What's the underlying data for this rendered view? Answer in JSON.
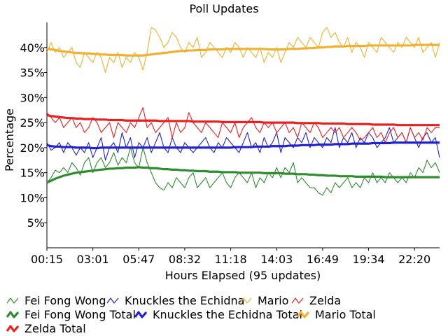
{
  "chart_data": {
    "type": "line",
    "title": "Poll Updates",
    "xlabel": "Hours Elapsed (95 updates)",
    "ylabel": "Percentage",
    "ylim": [
      0,
      45
    ],
    "yticks": [
      5,
      10,
      15,
      20,
      25,
      30,
      35,
      40
    ],
    "ytick_labels": [
      "5%",
      "10%",
      "15%",
      "20%",
      "25%",
      "30%",
      "35%",
      "40%"
    ],
    "x_tick_labels": [
      "00:15",
      "03:01",
      "05:47",
      "08:32",
      "11:18",
      "14:03",
      "16:49",
      "19:34",
      "22:20"
    ],
    "x_tick_index": [
      0,
      11,
      22,
      33,
      44,
      55,
      66,
      77,
      88
    ],
    "n_updates": 95,
    "grid": false,
    "legend_position": "bottom",
    "series": [
      {
        "name": "Fei Fong Wong",
        "color": "#2e8b2e",
        "style": "thin",
        "values": [
          13,
          14,
          15.5,
          15,
          16,
          15,
          17,
          16,
          14.5,
          17,
          18,
          15,
          17,
          18,
          16,
          17,
          19,
          16.5,
          18,
          17,
          20,
          17,
          16,
          20,
          17,
          15,
          13,
          12,
          11.5,
          13,
          12,
          14,
          13,
          12,
          14,
          15,
          12,
          13,
          14,
          12,
          13,
          14,
          15,
          13,
          12,
          14,
          15,
          14,
          13,
          15,
          12,
          14,
          13,
          15,
          14,
          16,
          14,
          16,
          15,
          17,
          13,
          14,
          13,
          12,
          12,
          11,
          10.5,
          12,
          11,
          13,
          12,
          13,
          14,
          12,
          13,
          12,
          14,
          13,
          15,
          13,
          14,
          13,
          15,
          14,
          13,
          14,
          13,
          15,
          14,
          16,
          15,
          17.5,
          16,
          17,
          15
        ]
      },
      {
        "name": "Knuckles the Echidna",
        "color": "#2222cc",
        "style": "thin",
        "values": [
          21,
          19.5,
          20,
          21,
          19,
          21,
          20,
          18.5,
          20,
          19,
          21,
          18,
          20,
          22,
          17.5,
          20,
          21,
          19,
          23,
          20,
          22,
          18,
          21,
          20,
          22,
          19,
          21,
          23,
          20,
          19,
          22,
          20,
          19,
          21,
          20,
          19,
          20,
          21,
          22,
          20,
          19,
          21,
          20,
          22,
          21,
          20,
          19,
          21,
          23,
          20,
          21,
          19,
          22,
          20,
          21,
          23,
          19,
          22,
          21,
          20,
          22,
          21,
          23,
          20,
          22,
          21,
          20,
          22,
          21,
          24,
          20,
          22,
          21,
          23,
          20,
          22,
          21,
          23,
          22,
          20,
          21,
          22,
          24,
          21,
          22,
          23,
          21,
          24,
          22,
          20,
          22,
          23,
          21,
          22,
          18
        ]
      },
      {
        "name": "Mario",
        "color": "#f0b030",
        "style": "thin",
        "values": [
          39,
          41,
          39,
          40,
          38,
          39,
          40,
          37,
          36,
          39,
          38,
          37,
          39,
          38,
          35,
          38,
          37,
          39,
          36,
          38,
          37,
          39,
          38,
          35.5,
          39,
          44,
          43.5,
          42,
          40,
          41,
          43,
          42,
          40,
          39,
          41,
          40,
          42,
          38,
          39,
          41,
          40,
          39,
          38,
          40,
          39,
          41,
          40,
          38,
          40,
          39,
          38,
          40,
          37,
          39,
          38,
          40,
          37,
          39,
          41,
          40,
          42,
          41,
          40,
          42,
          41,
          40,
          43,
          44,
          42,
          43,
          41,
          40,
          42,
          39,
          41,
          40,
          38,
          41,
          40,
          39,
          42,
          41,
          40,
          39,
          41,
          40,
          42,
          41,
          40,
          42,
          39,
          40,
          41,
          38,
          41
        ]
      },
      {
        "name": "Zelda",
        "color": "#e82020",
        "style": "thin",
        "values": [
          27,
          26,
          25,
          26,
          24,
          25,
          26,
          24,
          25,
          23,
          24,
          26,
          25,
          23,
          24,
          25,
          22,
          25,
          24,
          23,
          25,
          24,
          26,
          28,
          24,
          25,
          23,
          24,
          25,
          26,
          22,
          25,
          23,
          24,
          27,
          25,
          24,
          23,
          25,
          24,
          23,
          22,
          25,
          24,
          23,
          25,
          22,
          24,
          25,
          26,
          24,
          23,
          25,
          24,
          25,
          23,
          24,
          25,
          23,
          24,
          22,
          25,
          24,
          23,
          25,
          24,
          22,
          23,
          24,
          23,
          24,
          22,
          23,
          24,
          23,
          21.5,
          22,
          23,
          24,
          22,
          23,
          21,
          23,
          24,
          22,
          23,
          21,
          24,
          22,
          23,
          21.5,
          24,
          23,
          24,
          24
        ]
      },
      {
        "name": "Fei Fong Wong Total",
        "color": "#2e8b2e",
        "style": "thick",
        "values": [
          13,
          13.4,
          13.8,
          14.1,
          14.4,
          14.6,
          14.8,
          15,
          15.1,
          15.2,
          15.3,
          15.4,
          15.5,
          15.6,
          15.7,
          15.8,
          15.8,
          15.9,
          15.9,
          16,
          16,
          16,
          16.1,
          16,
          16,
          15.9,
          15.9,
          15.8,
          15.7,
          15.7,
          15.6,
          15.6,
          15.5,
          15.5,
          15.4,
          15.4,
          15.3,
          15.3,
          15.3,
          15.2,
          15.2,
          15.2,
          15.1,
          15.1,
          15.1,
          15.1,
          15,
          15,
          15,
          15,
          15,
          15,
          14.9,
          14.9,
          14.9,
          14.9,
          14.9,
          14.8,
          14.8,
          14.8,
          14.7,
          14.7,
          14.7,
          14.6,
          14.6,
          14.5,
          14.5,
          14.4,
          14.4,
          14.4,
          14.3,
          14.3,
          14.3,
          14.3,
          14.2,
          14.2,
          14.2,
          14.2,
          14.2,
          14.2,
          14.2,
          14.1,
          14.1,
          14.1,
          14.1,
          14.1,
          14.1,
          14.1,
          14.1,
          14.1,
          14.1,
          14.1,
          14.1,
          14.1,
          14.1
        ]
      },
      {
        "name": "Knuckles the Echidna Total",
        "color": "#2222cc",
        "style": "thick",
        "values": [
          20.5,
          20.3,
          20.2,
          20.2,
          20.1,
          20.1,
          20.1,
          20,
          20,
          20,
          20,
          19.9,
          19.9,
          20,
          20,
          20,
          20,
          20,
          20,
          20,
          20,
          20,
          20,
          20,
          20,
          20,
          20,
          20,
          20,
          20,
          20,
          20,
          20,
          20,
          20,
          20,
          20,
          20,
          20,
          20,
          20,
          20,
          20,
          20,
          20,
          20.1,
          20.1,
          20.1,
          20.1,
          20.1,
          20.2,
          20.2,
          20.2,
          20.2,
          20.3,
          20.3,
          20.3,
          20.3,
          20.4,
          20.4,
          20.4,
          20.5,
          20.5,
          20.5,
          20.5,
          20.6,
          20.6,
          20.6,
          20.6,
          20.7,
          20.7,
          20.7,
          20.7,
          20.8,
          20.8,
          20.8,
          20.8,
          20.8,
          20.9,
          20.9,
          20.9,
          20.9,
          20.9,
          21,
          21,
          21,
          21,
          21,
          21,
          21,
          21,
          21,
          21,
          21,
          21
        ]
      },
      {
        "name": "Mario Total",
        "color": "#f0b030",
        "style": "thick",
        "values": [
          39.8,
          39.6,
          39.5,
          39.3,
          39.2,
          39.1,
          39,
          38.9,
          38.9,
          38.8,
          38.8,
          38.7,
          38.7,
          38.6,
          38.6,
          38.5,
          38.5,
          38.5,
          38.5,
          38.4,
          38.4,
          38.4,
          38.4,
          38.4,
          38.5,
          38.6,
          38.7,
          38.8,
          38.9,
          39,
          39.1,
          39.2,
          39.3,
          39.3,
          39.4,
          39.4,
          39.5,
          39.5,
          39.5,
          39.6,
          39.6,
          39.6,
          39.6,
          39.7,
          39.7,
          39.7,
          39.7,
          39.7,
          39.7,
          39.7,
          39.7,
          39.7,
          39.7,
          39.6,
          39.6,
          39.6,
          39.6,
          39.6,
          39.7,
          39.7,
          39.7,
          39.8,
          39.8,
          39.9,
          39.9,
          40,
          40,
          40.1,
          40.1,
          40.2,
          40.2,
          40.2,
          40.3,
          40.3,
          40.3,
          40.3,
          40.3,
          40.4,
          40.4,
          40.4,
          40.4,
          40.4,
          40.4,
          40.4,
          40.4,
          40.4,
          40.4,
          40.4,
          40.5,
          40.5,
          40.5,
          40.5,
          40.5,
          40.5,
          40.5
        ]
      },
      {
        "name": "Zelda Total",
        "color": "#e82020",
        "style": "thick",
        "values": [
          26.5,
          26.3,
          26.2,
          26.1,
          26,
          25.9,
          25.9,
          25.8,
          25.8,
          25.7,
          25.7,
          25.7,
          25.6,
          25.6,
          25.6,
          25.5,
          25.5,
          25.5,
          25.5,
          25.4,
          25.4,
          25.4,
          25.4,
          25.4,
          25.4,
          25.4,
          25.4,
          25.3,
          25.3,
          25.3,
          25.3,
          25.3,
          25.3,
          25.3,
          25.3,
          25.2,
          25.2,
          25.2,
          25.2,
          25.2,
          25.2,
          25.2,
          25.1,
          25.1,
          25.1,
          25.1,
          25.1,
          25.1,
          25.1,
          25.1,
          25.1,
          25.1,
          25,
          25,
          25,
          25,
          25,
          25,
          25,
          25,
          24.9,
          24.9,
          24.9,
          24.9,
          24.9,
          24.9,
          24.8,
          24.8,
          24.8,
          24.8,
          24.8,
          24.8,
          24.7,
          24.7,
          24.7,
          24.7,
          24.7,
          24.7,
          24.6,
          24.6,
          24.6,
          24.6,
          24.6,
          24.6,
          24.5,
          24.5,
          24.5,
          24.5,
          24.5,
          24.5,
          24.5,
          24.5,
          24.5,
          24.5,
          24.5
        ]
      }
    ]
  }
}
